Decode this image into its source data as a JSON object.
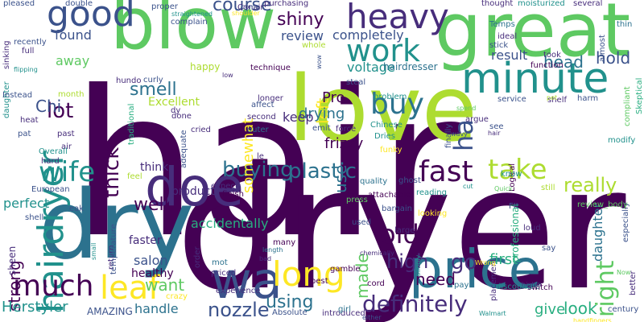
{
  "palette": {
    "dark_purple": "#440154",
    "indigo": "#472d7b",
    "blue": "#3b528b",
    "steel_blue": "#2c728e",
    "teal": "#21918c",
    "green_teal": "#28ae80",
    "green": "#5ec962",
    "lime": "#addc30",
    "yellow": "#fde725"
  },
  "words": [
    {
      "text": "hair",
      "color": "#440154"
    },
    {
      "text": "dryer",
      "color": "#440154"
    },
    {
      "text": "love",
      "color": "#addc30"
    },
    {
      "text": "great",
      "color": "#5ec962"
    },
    {
      "text": "blow",
      "color": "#5ec962"
    },
    {
      "text": "dry",
      "color": "#2c728e"
    },
    {
      "text": "price",
      "color": "#2c728e"
    },
    {
      "text": "minute",
      "color": "#21918c"
    },
    {
      "text": "hairdryer",
      "color": "#21918c"
    },
    {
      "text": "doe",
      "color": "#472d7b"
    },
    {
      "text": "wa",
      "color": "#3b528b"
    },
    {
      "text": "long",
      "color": "#fde725"
    },
    {
      "text": "heavy",
      "color": "#472d7b"
    },
    {
      "text": "good",
      "color": "#3b528b"
    },
    {
      "text": "work",
      "color": "#21918c"
    },
    {
      "text": "buy",
      "color": "#2c728e"
    },
    {
      "text": "fast",
      "color": "#440154"
    },
    {
      "text": "take",
      "color": "#addc30"
    },
    {
      "text": "wife",
      "color": "#21918c"
    },
    {
      "text": "much",
      "color": "#440154"
    },
    {
      "text": "leaf",
      "color": "#fde725"
    },
    {
      "text": "ha",
      "color": "#3b528b"
    },
    {
      "text": "right",
      "color": "#5ec962"
    },
    {
      "text": "old",
      "color": "#440154"
    },
    {
      "text": "definitely",
      "color": "#472d7b"
    },
    {
      "text": "plastic",
      "color": "#2c728e"
    },
    {
      "text": "buying",
      "color": "#2c728e"
    },
    {
      "text": "thick",
      "color": "#440154"
    },
    {
      "text": "lot",
      "color": "#440154"
    },
    {
      "text": "smell",
      "color": "#2c728e"
    },
    {
      "text": "shiny",
      "color": "#440154"
    },
    {
      "text": "course",
      "color": "#3b528b"
    },
    {
      "text": "really",
      "color": "#addc30"
    },
    {
      "text": "high",
      "color": "#472d7b"
    },
    {
      "text": "go",
      "color": "#472d7b"
    },
    {
      "text": "well",
      "color": "#440154"
    },
    {
      "text": "want",
      "color": "#5ec962"
    },
    {
      "text": "look",
      "color": "#28ae80"
    },
    {
      "text": "need",
      "color": "#440154"
    },
    {
      "text": "using",
      "color": "#2c728e"
    },
    {
      "text": "nozzle",
      "color": "#3b528b"
    },
    {
      "text": "Chi",
      "color": "#3b528b"
    },
    {
      "text": "head",
      "color": "#2c728e"
    },
    {
      "text": "hold",
      "color": "#3b528b"
    },
    {
      "text": "strong",
      "color": "#440154"
    },
    {
      "text": "made",
      "color": "#5ec962"
    },
    {
      "text": "found",
      "color": "#3b528b"
    },
    {
      "text": "away",
      "color": "#5ec962"
    },
    {
      "text": "left",
      "color": "#fde725"
    },
    {
      "text": "use",
      "color": "#2c728e"
    },
    {
      "text": "result",
      "color": "#3b528b"
    },
    {
      "text": "drying",
      "color": "#2c728e"
    },
    {
      "text": "Herstyler",
      "color": "#21918c"
    },
    {
      "text": "daughter",
      "color": "#2c728e"
    },
    {
      "text": "give",
      "color": "#28ae80"
    },
    {
      "text": "first",
      "color": "#28ae80"
    },
    {
      "text": "frizzy",
      "color": "#440154"
    },
    {
      "text": "handle",
      "color": "#2c728e"
    },
    {
      "text": "perfect",
      "color": "#21918c"
    },
    {
      "text": "somewhat",
      "color": "#fde725"
    },
    {
      "text": "Pro",
      "color": "#440154"
    },
    {
      "text": "keep",
      "color": "#472d7b"
    },
    {
      "text": "salon",
      "color": "#3b528b"
    },
    {
      "text": "accidentally",
      "color": "#28ae80"
    },
    {
      "text": "review",
      "color": "#3b528b"
    },
    {
      "text": "completely",
      "color": "#3b528b"
    },
    {
      "text": "voltage",
      "color": "#21918c"
    },
    {
      "text": "Excellent",
      "color": "#addc30"
    },
    {
      "text": "think",
      "color": "#472d7b"
    },
    {
      "text": "product",
      "color": "#472d7b"
    },
    {
      "text": "faster",
      "color": "#472d7b"
    },
    {
      "text": "healthy",
      "color": "#440154"
    },
    {
      "text": "AMAZING",
      "color": "#3b528b"
    },
    {
      "text": "sheen",
      "color": "#472d7b"
    },
    {
      "text": "happy",
      "color": "#addc30"
    },
    {
      "text": "Conair",
      "color": "#472d7b"
    },
    {
      "text": "hairdresser",
      "color": "#2c728e"
    },
    {
      "text": "technique",
      "color": "#440154"
    },
    {
      "text": "longer",
      "color": "#472d7b"
    },
    {
      "text": "second",
      "color": "#472d7b"
    },
    {
      "text": "force",
      "color": "#472d7b"
    },
    {
      "text": "emit",
      "color": "#3b528b"
    },
    {
      "text": "outer",
      "color": "#2c728e"
    },
    {
      "text": "Dries",
      "color": "#21918c"
    },
    {
      "text": "funky",
      "color": "#fde725"
    },
    {
      "text": "Chinese",
      "color": "#21918c"
    },
    {
      "text": "steal",
      "color": "#3b528b"
    },
    {
      "text": "problem",
      "color": "#21918c"
    },
    {
      "text": "quality",
      "color": "#2c728e"
    },
    {
      "text": "attachable",
      "color": "#440154"
    },
    {
      "text": "bargain",
      "color": "#3b528b"
    },
    {
      "text": "large",
      "color": "#472d7b"
    },
    {
      "text": "ghost",
      "color": "#3b528b"
    },
    {
      "text": "reading",
      "color": "#21918c"
    },
    {
      "text": "argue",
      "color": "#472d7b"
    },
    {
      "text": "service",
      "color": "#3b528b"
    },
    {
      "text": "shelf",
      "color": "#472d7b"
    },
    {
      "text": "harm",
      "color": "#3b528b"
    },
    {
      "text": "see",
      "color": "#3b528b"
    },
    {
      "text": "Logical",
      "color": "#440154"
    },
    {
      "text": "loud",
      "color": "#472d7b"
    },
    {
      "text": "say",
      "color": "#3b528b"
    },
    {
      "text": "FIt",
      "color": "#3b528b"
    },
    {
      "text": "still",
      "color": "#addc30"
    },
    {
      "text": "know",
      "color": "#21918c"
    },
    {
      "text": "modify",
      "color": "#21918c"
    },
    {
      "text": "Temps",
      "color": "#2c728e"
    },
    {
      "text": "ideal",
      "color": "#472d7b"
    },
    {
      "text": "stick",
      "color": "#3b528b"
    },
    {
      "text": "took",
      "color": "#472d7b"
    },
    {
      "text": "function",
      "color": "#440154"
    },
    {
      "text": "thought",
      "color": "#472d7b"
    },
    {
      "text": "moisturized",
      "color": "#21918c"
    },
    {
      "text": "several",
      "color": "#472d7b"
    },
    {
      "text": "thin",
      "color": "#2c728e"
    },
    {
      "text": "almost",
      "color": "#3b528b"
    },
    {
      "text": "Skeptical",
      "color": "#28ae80"
    },
    {
      "text": "compliant",
      "color": "#5ec962"
    },
    {
      "text": "pet",
      "color": "#addc30"
    },
    {
      "text": "spend",
      "color": "#5ec962"
    },
    {
      "text": "finally",
      "color": "#3b528b"
    },
    {
      "text": "wavy",
      "color": "#3b528b"
    },
    {
      "text": "hair",
      "color": "#472d7b"
    },
    {
      "text": "professional",
      "color": "#28ae80"
    },
    {
      "text": "placement",
      "color": "#472d7b"
    },
    {
      "text": "pay",
      "color": "#2c728e"
    },
    {
      "text": "discounted",
      "color": "#21918c"
    },
    {
      "text": "switch",
      "color": "#440154"
    },
    {
      "text": "higher",
      "color": "#472d7b"
    },
    {
      "text": "Walmart",
      "color": "#21918c"
    },
    {
      "text": "century",
      "color": "#3b528b"
    },
    {
      "text": "better",
      "color": "#472d7b"
    },
    {
      "text": "especially",
      "color": "#3b528b"
    },
    {
      "text": "Now",
      "color": "#5ec962"
    },
    {
      "text": "cord",
      "color": "#440154"
    },
    {
      "text": "gamble",
      "color": "#440154"
    },
    {
      "text": "introduced",
      "color": "#472d7b"
    },
    {
      "text": "either",
      "color": "#3b528b"
    },
    {
      "text": "girl",
      "color": "#2c728e"
    },
    {
      "text": "Absolute",
      "color": "#3b528b"
    },
    {
      "text": "experience",
      "color": "#472d7b"
    },
    {
      "text": "best",
      "color": "#440154"
    },
    {
      "text": "priced",
      "color": "#472d7b"
    },
    {
      "text": "mot",
      "color": "#2c728e"
    },
    {
      "text": "bad",
      "color": "#472d7b"
    },
    {
      "text": "length",
      "color": "#2c728e"
    },
    {
      "text": "many",
      "color": "#440154"
    },
    {
      "text": "order",
      "color": "#472d7b"
    },
    {
      "text": "return",
      "color": "#472d7b"
    },
    {
      "text": "temperature",
      "color": "#3b528b"
    },
    {
      "text": "crazy",
      "color": "#fde725"
    },
    {
      "text": "expect",
      "color": "#472d7b"
    },
    {
      "text": "finish",
      "color": "#440154"
    },
    {
      "text": "adequate",
      "color": "#3b528b"
    },
    {
      "text": "cried",
      "color": "#472d7b"
    },
    {
      "text": "dy",
      "color": "#472d7b"
    },
    {
      "text": "affect",
      "color": "#3b528b"
    },
    {
      "text": "le",
      "color": "#472d7b"
    },
    {
      "text": "traditional",
      "color": "#28ae80"
    },
    {
      "text": "done",
      "color": "#472d7b"
    },
    {
      "text": "curly",
      "color": "#3b528b"
    },
    {
      "text": "hundo",
      "color": "#472d7b"
    },
    {
      "text": "low",
      "color": "#472d7b"
    },
    {
      "text": "complain",
      "color": "#3b528b"
    },
    {
      "text": "proper",
      "color": "#3b528b"
    },
    {
      "text": "straightened",
      "color": "#21918c"
    },
    {
      "text": "double",
      "color": "#3b528b"
    },
    {
      "text": "pleased",
      "color": "#3b528b"
    },
    {
      "text": "sinking",
      "color": "#472d7b"
    },
    {
      "text": "daughter",
      "color": "#21918c"
    },
    {
      "text": "full",
      "color": "#472d7b"
    },
    {
      "text": "recently",
      "color": "#3b528b"
    },
    {
      "text": "flipping",
      "color": "#21918c"
    },
    {
      "text": "Instead",
      "color": "#3b528b"
    },
    {
      "text": "heat",
      "color": "#472d7b"
    },
    {
      "text": "pat",
      "color": "#3b528b"
    },
    {
      "text": "month",
      "color": "#addc30"
    },
    {
      "text": "past",
      "color": "#472d7b"
    },
    {
      "text": "air",
      "color": "#472d7b"
    },
    {
      "text": "Overall",
      "color": "#21918c"
    },
    {
      "text": "hard",
      "color": "#472d7b"
    },
    {
      "text": "European",
      "color": "#3b528b"
    },
    {
      "text": "eak",
      "color": "#3b528b"
    },
    {
      "text": "shell",
      "color": "#3b528b"
    },
    {
      "text": "feel",
      "color": "#addc30"
    },
    {
      "text": "small",
      "color": "#21918c"
    },
    {
      "text": "shoulder",
      "color": "#fde725"
    },
    {
      "text": "come",
      "color": "#3b528b"
    },
    {
      "text": "purchasing",
      "color": "#472d7b"
    },
    {
      "text": "whole",
      "color": "#addc30"
    },
    {
      "text": "wow",
      "color": "#3b528b"
    },
    {
      "text": "review_body",
      "color": "#5ec962"
    },
    {
      "text": "Quick",
      "color": "#5ec962"
    },
    {
      "text": "cut",
      "color": "#21918c"
    },
    {
      "text": "press",
      "color": "#5ec962"
    },
    {
      "text": "used",
      "color": "#3b528b"
    },
    {
      "text": "looking",
      "color": "#fde725"
    },
    {
      "text": "chemically",
      "color": "#472d7b"
    },
    {
      "text": "simply",
      "color": "#21918c"
    },
    {
      "text": "Wrong",
      "color": "#fde725"
    },
    {
      "text": "handfingers",
      "color": "#fde725"
    }
  ]
}
